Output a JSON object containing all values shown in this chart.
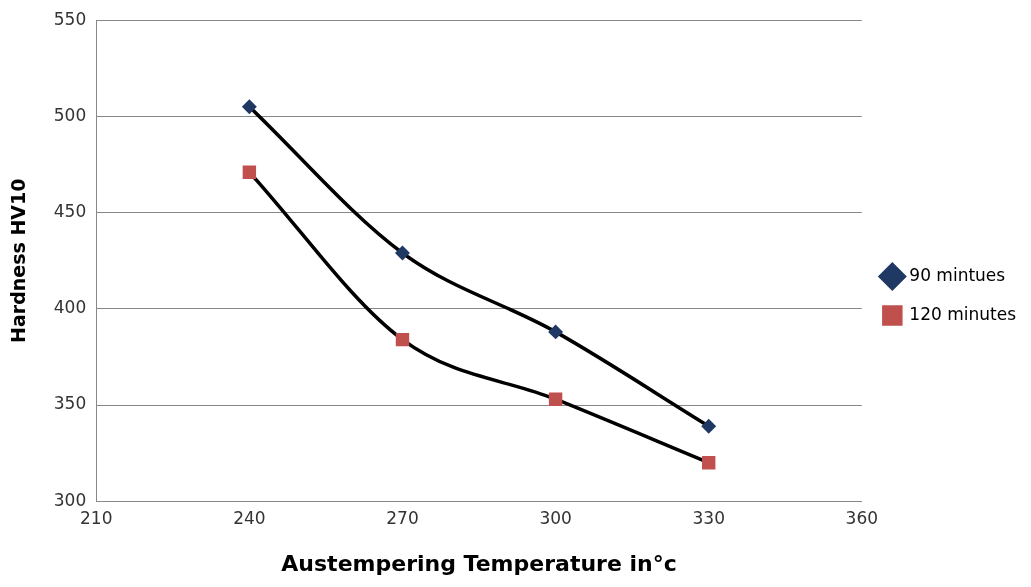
{
  "chart_data": {
    "type": "line",
    "xlabel": "Austempering Temperature in°c",
    "ylabel": "Hardness HV10",
    "x": [
      240,
      270,
      300,
      330
    ],
    "series": [
      {
        "name": "90 mintues",
        "color": "#1f3864",
        "marker": "diamond",
        "values": [
          505,
          429,
          388,
          339
        ]
      },
      {
        "name": "120 minutes",
        "color": "#c0504d",
        "marker": "square",
        "values": [
          471,
          384,
          353,
          320
        ]
      }
    ],
    "xlim": [
      210,
      360
    ],
    "xticks": [
      210,
      240,
      270,
      300,
      330,
      360
    ],
    "ylim": [
      300,
      550
    ],
    "yticks": [
      300,
      350,
      400,
      450,
      500,
      550
    ],
    "grid": "y",
    "legend": "right"
  }
}
